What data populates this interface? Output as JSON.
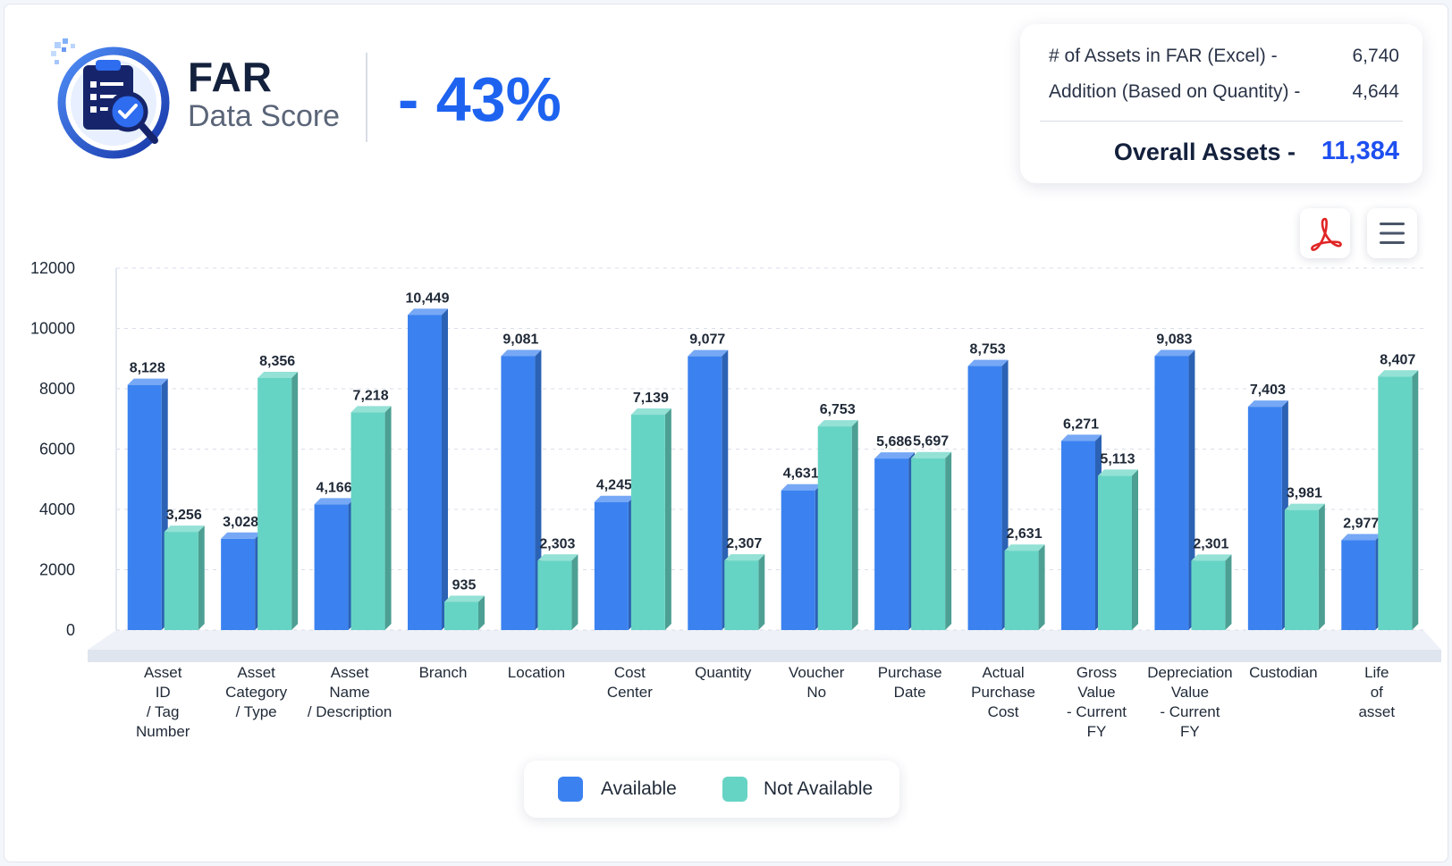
{
  "header": {
    "title": "FAR",
    "subtitle": "Data Score",
    "score": "- 43%"
  },
  "summary": {
    "rows": [
      {
        "label": "# of Assets in FAR (Excel) -",
        "value": "6,740"
      },
      {
        "label": "Addition (Based on Quantity) -",
        "value": "4,644"
      }
    ],
    "total_label": "Overall Assets -",
    "total_value": "11,384"
  },
  "toolbar": {
    "pdf_icon": "pdf-icon",
    "menu_icon": "hamburger-menu-icon"
  },
  "legend": {
    "available": "Available",
    "not_available": "Not Available"
  },
  "chart_data": {
    "type": "bar",
    "title": "",
    "xlabel": "",
    "ylabel": "",
    "ylim": [
      0,
      12000
    ],
    "yticks": [
      0,
      2000,
      4000,
      6000,
      8000,
      10000,
      12000
    ],
    "grid": true,
    "legend_position": "bottom",
    "categories": [
      [
        "Asset",
        "ID",
        "/ Tag",
        "Number"
      ],
      [
        "Asset",
        "Category",
        "/ Type"
      ],
      [
        "Asset",
        "Name",
        "/ Description"
      ],
      [
        "Branch"
      ],
      [
        "Location"
      ],
      [
        "Cost",
        "Center"
      ],
      [
        "Quantity"
      ],
      [
        "Voucher",
        "No"
      ],
      [
        "Purchase",
        "Date"
      ],
      [
        "Actual",
        "Purchase",
        "Cost"
      ],
      [
        "Gross",
        "Value",
        "- Current",
        "FY"
      ],
      [
        "Depreciation",
        "Value",
        "- Current",
        "FY"
      ],
      [
        "Custodian"
      ],
      [
        "Life",
        "of",
        "asset"
      ]
    ],
    "series": [
      {
        "name": "Available",
        "color": "#3b82f0",
        "values": [
          8128,
          3028,
          4166,
          10449,
          9081,
          4245,
          9077,
          4631,
          5686,
          8753,
          6271,
          9083,
          7403,
          2977
        ],
        "labels": [
          "8,128",
          "3,028",
          "4,166",
          "10,449",
          "9,081",
          "4,245",
          "9,077",
          "4,631",
          "5,686",
          "8,753",
          "6,271",
          "9,083",
          "7,403",
          "2,977"
        ]
      },
      {
        "name": "Not Available",
        "color": "#66d4c4",
        "values": [
          3256,
          8356,
          7218,
          935,
          2303,
          7139,
          2307,
          6753,
          5697,
          2631,
          5113,
          2301,
          3981,
          8407
        ],
        "labels": [
          "3,256",
          "8,356",
          "7,218",
          "935",
          "2,303",
          "7,139",
          "2,307",
          "6,753",
          "5,697",
          "2,631",
          "5,113",
          "2,301",
          "3,981",
          "8,407"
        ]
      }
    ]
  }
}
